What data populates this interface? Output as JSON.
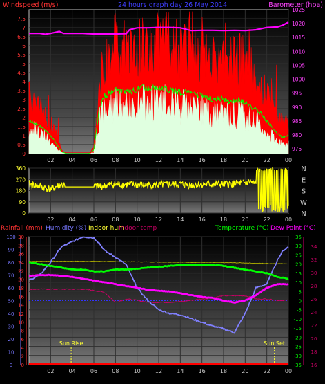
{
  "chart_data": [
    {
      "type": "line",
      "title": "24 hours graph day  26 May 2014",
      "left_axis_label": "Windspeed (m/s)",
      "right_axis_label": "Barometer (hpa)",
      "left_ylim": [
        0,
        8
      ],
      "left_ticks": [
        "0",
        "0.5",
        "1",
        "1.5",
        "2",
        "2.5",
        "3",
        "3.5",
        "4",
        "4.5",
        "5",
        "5.5",
        "6",
        "6.5",
        "7",
        "7.5"
      ],
      "right_ylim": [
        973.3,
        1025
      ],
      "right_ticks": [
        "975",
        "980",
        "985",
        "990",
        "995",
        "1000",
        "1005",
        "1010",
        "1015",
        "1020",
        "1025"
      ],
      "x_ticks": [
        "02",
        "04",
        "06",
        "08",
        "10",
        "12",
        "14",
        "16",
        "18",
        "20",
        "22",
        "00"
      ],
      "xlim": [
        0,
        24
      ],
      "colors": {
        "gust": "#ff0000",
        "speed": "#e0ffe0",
        "avg": "#00ff00",
        "barometer": "#ff00ff"
      },
      "barometer": {
        "x": [
          0,
          1,
          1.5,
          2,
          2.8,
          3.2,
          4,
          5,
          6,
          7,
          8,
          9,
          9.3,
          10,
          11,
          12,
          13,
          14,
          15,
          16,
          17,
          18,
          19,
          20,
          21,
          22,
          23,
          23.5,
          24
        ],
        "y": [
          1016.5,
          1016.5,
          1016.2,
          1016.5,
          1017.2,
          1016.5,
          1016.5,
          1016.5,
          1016.3,
          1016.3,
          1016.3,
          1016.4,
          1017.8,
          1018.5,
          1018.5,
          1018.6,
          1018.6,
          1018.5,
          1017.5,
          1017.6,
          1017.6,
          1017.5,
          1017.6,
          1017.5,
          1017.8,
          1018.6,
          1018.8,
          1019.5,
          1020.5
        ]
      },
      "wind_speed_profile": {
        "x": [
          0,
          0.5,
          1,
          1.5,
          2,
          2.5,
          3,
          3.5,
          4,
          4.5,
          5,
          5.5,
          6,
          6.5,
          7,
          7.5,
          8,
          8.5,
          9,
          9.5,
          10,
          10.5,
          11,
          11.5,
          12,
          12.5,
          13,
          13.5,
          14,
          14.5,
          15,
          15.5,
          16,
          16.5,
          17,
          17.5,
          18,
          18.5,
          19,
          19.5,
          20,
          20.5,
          21,
          21.5,
          22,
          22.5,
          23,
          23.5,
          24
        ],
        "gust": [
          2.9,
          2.7,
          2.3,
          2.0,
          1.5,
          1.0,
          0.2,
          0,
          0,
          0,
          0,
          0,
          0.3,
          3.5,
          4.5,
          4.8,
          5.5,
          4.8,
          5.0,
          4.8,
          5.5,
          5.6,
          5.4,
          5.7,
          5.6,
          5.5,
          5.4,
          5.3,
          5.2,
          5.3,
          5.1,
          5.0,
          5.0,
          4.9,
          4.7,
          4.8,
          4.7,
          4.5,
          4.6,
          4.7,
          4.5,
          4.2,
          4.0,
          3.5,
          3.0,
          2.5,
          1.8,
          1.5,
          1.6
        ],
        "average": [
          1.8,
          1.7,
          1.5,
          1.3,
          1.0,
          0.6,
          0.1,
          0,
          0,
          0,
          0,
          0,
          0.2,
          2.5,
          3.2,
          3.4,
          3.6,
          3.4,
          3.5,
          3.4,
          3.6,
          3.7,
          3.6,
          3.7,
          3.7,
          3.6,
          3.5,
          3.5,
          3.4,
          3.4,
          3.3,
          3.3,
          3.2,
          3.1,
          3.0,
          3.1,
          3.0,
          2.9,
          2.9,
          3.0,
          2.8,
          2.6,
          2.5,
          2.2,
          1.8,
          1.5,
          1.1,
          0.9,
          1.0
        ],
        "speed": [
          1.5,
          1.4,
          1.2,
          1.0,
          0.7,
          0.4,
          0.1,
          0,
          0,
          0,
          0,
          0,
          0.1,
          2.0,
          2.6,
          2.8,
          3.0,
          2.8,
          2.9,
          2.8,
          3.0,
          3.1,
          3.0,
          3.1,
          3.1,
          3.0,
          2.9,
          2.9,
          2.8,
          2.8,
          2.7,
          2.7,
          2.6,
          2.5,
          2.4,
          2.5,
          2.4,
          2.3,
          2.3,
          2.4,
          2.2,
          2.0,
          1.9,
          1.6,
          1.2,
          1.0,
          0.7,
          0.5,
          0.6
        ]
      }
    },
    {
      "type": "line",
      "title": "",
      "left_ticks": [
        "0",
        "90",
        "180",
        "270",
        "360"
      ],
      "right_labels": [
        "N",
        "W",
        "S",
        "E",
        "N"
      ],
      "ylim": [
        0,
        360
      ],
      "x_ticks": [
        "02",
        "04",
        "06",
        "08",
        "10",
        "12",
        "14",
        "16",
        "18",
        "20",
        "22",
        "00"
      ],
      "xlim": [
        0,
        24
      ],
      "color": "#ffff00",
      "wind_direction": {
        "x": [
          0,
          1,
          2,
          3,
          4,
          5,
          6,
          7,
          8,
          9,
          10,
          11,
          12,
          13,
          14,
          15,
          16,
          17,
          18,
          19,
          20,
          20.5,
          21,
          21.5,
          22,
          22.5,
          23,
          23.5,
          24
        ],
        "y": [
          230,
          215,
          190,
          230,
          210,
          210,
          210,
          220,
          230,
          230,
          225,
          225,
          225,
          230,
          230,
          225,
          230,
          230,
          230,
          235,
          240,
          250,
          230,
          150,
          100,
          170,
          120,
          200,
          140
        ]
      }
    },
    {
      "type": "line",
      "legend": [
        "Rainfall (mm)",
        "Humidity (%)",
        "Indoor hum",
        "Indoor temp",
        "Temperature (°C)",
        "Dew Point (°C)"
      ],
      "legend_colors": [
        "#ff3333",
        "#7777ff",
        "#ffff33",
        "#cc0066",
        "#00ff00",
        "#ff00ff"
      ],
      "rain_ticks": [
        "0",
        "2",
        "4",
        "6",
        "8",
        "10",
        "12",
        "14",
        "16",
        "18",
        "20",
        "22",
        "24",
        "26",
        "28",
        "30"
      ],
      "humidity_ticks": [
        "0",
        "10",
        "20",
        "30",
        "40",
        "50",
        "60",
        "70",
        "80",
        "90",
        "100"
      ],
      "temp_ticks": [
        "-35",
        "-30",
        "-25",
        "-20",
        "-15",
        "-10",
        "-5",
        "0",
        "5",
        "10",
        "15",
        "20",
        "25",
        "30",
        "35"
      ],
      "indoor_temp_ticks": [
        "16",
        "18",
        "20",
        "22",
        "24",
        "26",
        "28",
        "30",
        "32",
        "34"
      ],
      "x_ticks": [
        "02",
        "04",
        "06",
        "08",
        "10",
        "12",
        "14",
        "16",
        "18",
        "20",
        "22",
        "00"
      ],
      "xlim": [
        0,
        24
      ],
      "sunrise_label": "Sun Rise",
      "sunset_label": "Sun Set",
      "sunrise_x": 3.9,
      "sunset_x": 22.7,
      "humidity": {
        "x": [
          0,
          1,
          2,
          3,
          4,
          5,
          6,
          6.5,
          7,
          8,
          9,
          10,
          11,
          12,
          13,
          14,
          15,
          16,
          17,
          18,
          19,
          20,
          21,
          22,
          23,
          23.5,
          24
        ],
        "y": [
          66,
          70,
          80,
          92,
          96,
          100,
          99,
          95,
          89,
          84,
          78,
          60,
          50,
          43,
          40,
          39,
          36,
          33,
          30,
          28,
          25,
          40,
          60,
          63,
          82,
          89,
          92
        ]
      },
      "temperature": {
        "x": [
          0,
          1,
          2,
          3,
          4,
          5,
          6,
          7,
          8,
          9,
          10,
          11,
          12,
          13,
          14,
          15,
          16,
          17,
          18,
          19,
          20,
          21,
          22,
          23,
          24
        ],
        "y": [
          21,
          20,
          19,
          18,
          17,
          17,
          16,
          16,
          17,
          17,
          17.5,
          18,
          18.5,
          19,
          19.5,
          19.5,
          19.5,
          19.5,
          19,
          18,
          17,
          16,
          15,
          13,
          12
        ]
      },
      "dew_point": {
        "x": [
          0,
          1,
          2,
          3,
          4,
          5,
          6,
          7,
          8,
          9,
          10,
          11,
          12,
          13,
          14,
          15,
          16,
          17,
          18,
          19,
          20,
          21,
          22,
          23,
          24
        ],
        "y": [
          13.5,
          14,
          14,
          13.5,
          13,
          12,
          11,
          10,
          9,
          8,
          7,
          6,
          5.5,
          5,
          4,
          3,
          2,
          1.5,
          0,
          -1,
          0,
          3,
          7,
          9,
          9
        ]
      },
      "indoor_temp": {
        "x": [
          0,
          1,
          2,
          3,
          4,
          5,
          6,
          7,
          8,
          9,
          10,
          11,
          12,
          13,
          14,
          15,
          16,
          17,
          18,
          19,
          20,
          21,
          22,
          23,
          24
        ],
        "y": [
          27.5,
          27.5,
          27.5,
          27.5,
          27.5,
          27.5,
          27.3,
          27,
          25.5,
          26,
          25.8,
          25.5,
          25.5,
          25.5,
          25.6,
          25.8,
          26,
          26.2,
          26.5,
          26.5,
          26.5,
          26,
          26,
          25.8,
          25.8
        ]
      },
      "indoor_hum": {
        "x": [
          0,
          6,
          10,
          14,
          18,
          20,
          22,
          24
        ],
        "y": [
          21.5,
          21.5,
          21.2,
          21,
          20.8,
          20.6,
          20.3,
          20.2
        ]
      },
      "rainfall": {
        "x": [
          0,
          24
        ],
        "y": [
          0,
          0
        ]
      }
    }
  ]
}
